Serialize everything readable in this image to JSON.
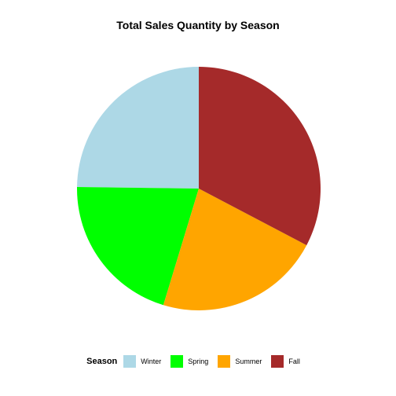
{
  "chart_data": {
    "type": "pie",
    "title": "Total Sales Quantity by Season",
    "legend_title": "Season",
    "legend_position": "bottom",
    "categories": [
      "Winter",
      "Spring",
      "Summer",
      "Fall"
    ],
    "values": [
      24.8,
      20.5,
      22.0,
      32.7
    ],
    "colors": [
      "#add8e6",
      "#00ff00",
      "#ffa500",
      "#a52a2a"
    ],
    "start": "top",
    "direction": "counterclockwise"
  }
}
